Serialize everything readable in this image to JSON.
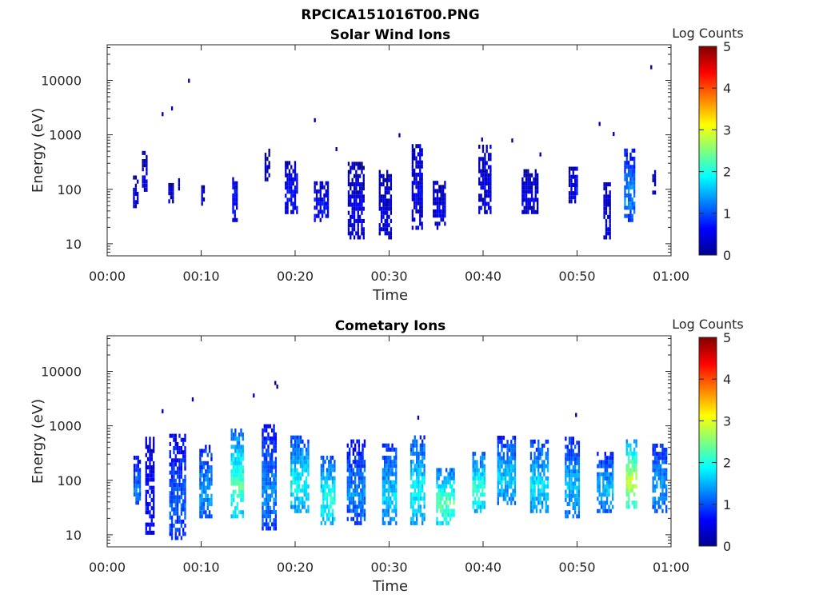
{
  "figure": {
    "title": "RPCICA151016T00.PNG"
  },
  "chart_data": [
    {
      "type": "heatmap",
      "title": "Solar Wind Ions",
      "xlabel": "Time",
      "ylabel": "Energy (eV)",
      "x_ticks": [
        "00:00",
        "00:10",
        "00:20",
        "00:30",
        "00:40",
        "00:50",
        "01:00"
      ],
      "x_range_min": [
        0,
        60
      ],
      "y_ticks": [
        "10",
        "100",
        "1000",
        "10000"
      ],
      "y_scale": "log",
      "y_range_eV": [
        6,
        45000
      ],
      "colorbar": {
        "label": "Log Counts",
        "range": [
          0,
          5
        ],
        "ticks": [
          "0",
          "1",
          "2",
          "3",
          "4",
          "5"
        ],
        "colormap": "jet"
      },
      "clusters": [
        {
          "t": 3.0,
          "dt": 0.5,
          "elo": 45,
          "ehi": 170,
          "c": 0.3
        },
        {
          "t": 4.0,
          "dt": 0.6,
          "elo": 90,
          "ehi": 450,
          "c": 0.3
        },
        {
          "t": 6.8,
          "dt": 0.6,
          "elo": 55,
          "ehi": 110,
          "c": 0.3
        },
        {
          "t": 7.7,
          "dt": 0.3,
          "elo": 95,
          "ehi": 180,
          "c": 0.3
        },
        {
          "t": 10.2,
          "dt": 0.4,
          "elo": 50,
          "ehi": 110,
          "c": 0.3
        },
        {
          "t": 13.6,
          "dt": 0.6,
          "elo": 25,
          "ehi": 160,
          "c": 0.6
        },
        {
          "t": 17.0,
          "dt": 0.5,
          "elo": 140,
          "ehi": 500,
          "c": 0.3
        },
        {
          "t": 19.6,
          "dt": 1.4,
          "elo": 35,
          "ehi": 300,
          "c": 0.5
        },
        {
          "t": 22.8,
          "dt": 1.6,
          "elo": 25,
          "ehi": 120,
          "c": 0.55
        },
        {
          "t": 26.5,
          "dt": 1.8,
          "elo": 12,
          "ehi": 280,
          "c": 0.4
        },
        {
          "t": 29.6,
          "dt": 1.4,
          "elo": 12,
          "ehi": 200,
          "c": 0.4
        },
        {
          "t": 33.0,
          "dt": 1.2,
          "elo": 18,
          "ehi": 600,
          "c": 0.45
        },
        {
          "t": 35.3,
          "dt": 1.3,
          "elo": 18,
          "ehi": 130,
          "c": 0.4
        },
        {
          "t": 40.2,
          "dt": 1.4,
          "elo": 35,
          "ehi": 600,
          "c": 0.4
        },
        {
          "t": 45.0,
          "dt": 1.8,
          "elo": 35,
          "ehi": 200,
          "c": 0.4
        },
        {
          "t": 49.6,
          "dt": 1.0,
          "elo": 55,
          "ehi": 250,
          "c": 0.5
        },
        {
          "t": 53.2,
          "dt": 0.8,
          "elo": 12,
          "ehi": 120,
          "c": 0.4
        },
        {
          "t": 55.6,
          "dt": 1.2,
          "elo": 25,
          "ehi": 550,
          "c": 1.1
        },
        {
          "t": 58.2,
          "dt": 0.4,
          "elo": 80,
          "ehi": 200,
          "c": 0.3
        }
      ],
      "points": [
        {
          "t": 5.8,
          "e": 2200
        },
        {
          "t": 6.8,
          "e": 2800
        },
        {
          "t": 8.6,
          "e": 9000
        },
        {
          "t": 22.0,
          "e": 1700
        },
        {
          "t": 46.0,
          "e": 400
        },
        {
          "t": 52.3,
          "e": 1450
        },
        {
          "t": 53.8,
          "e": 950
        },
        {
          "t": 57.8,
          "e": 16000
        },
        {
          "t": 31.0,
          "e": 900
        },
        {
          "t": 39.8,
          "e": 750
        },
        {
          "t": 43.0,
          "e": 720
        },
        {
          "t": 24.3,
          "e": 500
        }
      ]
    },
    {
      "type": "heatmap",
      "title": "Cometary Ions",
      "xlabel": "Time",
      "ylabel": "Energy (eV)",
      "x_ticks": [
        "00:00",
        "00:10",
        "00:20",
        "00:30",
        "00:40",
        "00:50",
        "01:00"
      ],
      "x_range_min": [
        0,
        60
      ],
      "y_ticks": [
        "10",
        "100",
        "1000",
        "10000"
      ],
      "y_scale": "log",
      "y_range_eV": [
        6,
        45000
      ],
      "colorbar": {
        "label": "Log Counts",
        "range": [
          0,
          5
        ],
        "ticks": [
          "0",
          "1",
          "2",
          "3",
          "4",
          "5"
        ],
        "colormap": "jet"
      },
      "clusters": [
        {
          "t": 3.2,
          "dt": 0.8,
          "elo": 30,
          "ehi": 260,
          "c": 1.0
        },
        {
          "t": 4.5,
          "dt": 0.9,
          "elo": 10,
          "ehi": 600,
          "c": 0.6
        },
        {
          "t": 7.5,
          "dt": 1.8,
          "elo": 8,
          "ehi": 700,
          "c": 0.9
        },
        {
          "t": 10.5,
          "dt": 1.4,
          "elo": 20,
          "ehi": 400,
          "c": 1.2
        },
        {
          "t": 13.8,
          "dt": 1.3,
          "elo": 20,
          "ehi": 800,
          "c": 1.9
        },
        {
          "t": 17.2,
          "dt": 1.5,
          "elo": 12,
          "ehi": 1000,
          "c": 1.1
        },
        {
          "t": 20.5,
          "dt": 2.0,
          "elo": 25,
          "ehi": 650,
          "c": 1.6
        },
        {
          "t": 23.5,
          "dt": 1.6,
          "elo": 15,
          "ehi": 250,
          "c": 1.7
        },
        {
          "t": 26.5,
          "dt": 2.0,
          "elo": 15,
          "ehi": 500,
          "c": 1.1
        },
        {
          "t": 30.0,
          "dt": 1.5,
          "elo": 15,
          "ehi": 400,
          "c": 1.4
        },
        {
          "t": 33.0,
          "dt": 1.5,
          "elo": 15,
          "ehi": 600,
          "c": 1.6
        },
        {
          "t": 36.0,
          "dt": 2.0,
          "elo": 15,
          "ehi": 150,
          "c": 2.0
        },
        {
          "t": 39.5,
          "dt": 1.3,
          "elo": 25,
          "ehi": 300,
          "c": 1.8
        },
        {
          "t": 42.5,
          "dt": 2.0,
          "elo": 35,
          "ehi": 600,
          "c": 1.4
        },
        {
          "t": 46.0,
          "dt": 2.0,
          "elo": 25,
          "ehi": 500,
          "c": 1.5
        },
        {
          "t": 49.5,
          "dt": 1.6,
          "elo": 20,
          "ehi": 600,
          "c": 1.3
        },
        {
          "t": 53.0,
          "dt": 1.8,
          "elo": 25,
          "ehi": 300,
          "c": 1.3
        },
        {
          "t": 55.8,
          "dt": 1.2,
          "elo": 30,
          "ehi": 550,
          "c": 2.4
        },
        {
          "t": 58.8,
          "dt": 1.6,
          "elo": 25,
          "ehi": 450,
          "c": 1.2
        }
      ],
      "points": [
        {
          "t": 5.8,
          "e": 1700
        },
        {
          "t": 9.0,
          "e": 2800
        },
        {
          "t": 15.5,
          "e": 3300
        },
        {
          "t": 17.8,
          "e": 5600
        },
        {
          "t": 18.0,
          "e": 4800
        },
        {
          "t": 49.8,
          "e": 1450
        },
        {
          "t": 33.0,
          "e": 1300
        }
      ]
    }
  ]
}
